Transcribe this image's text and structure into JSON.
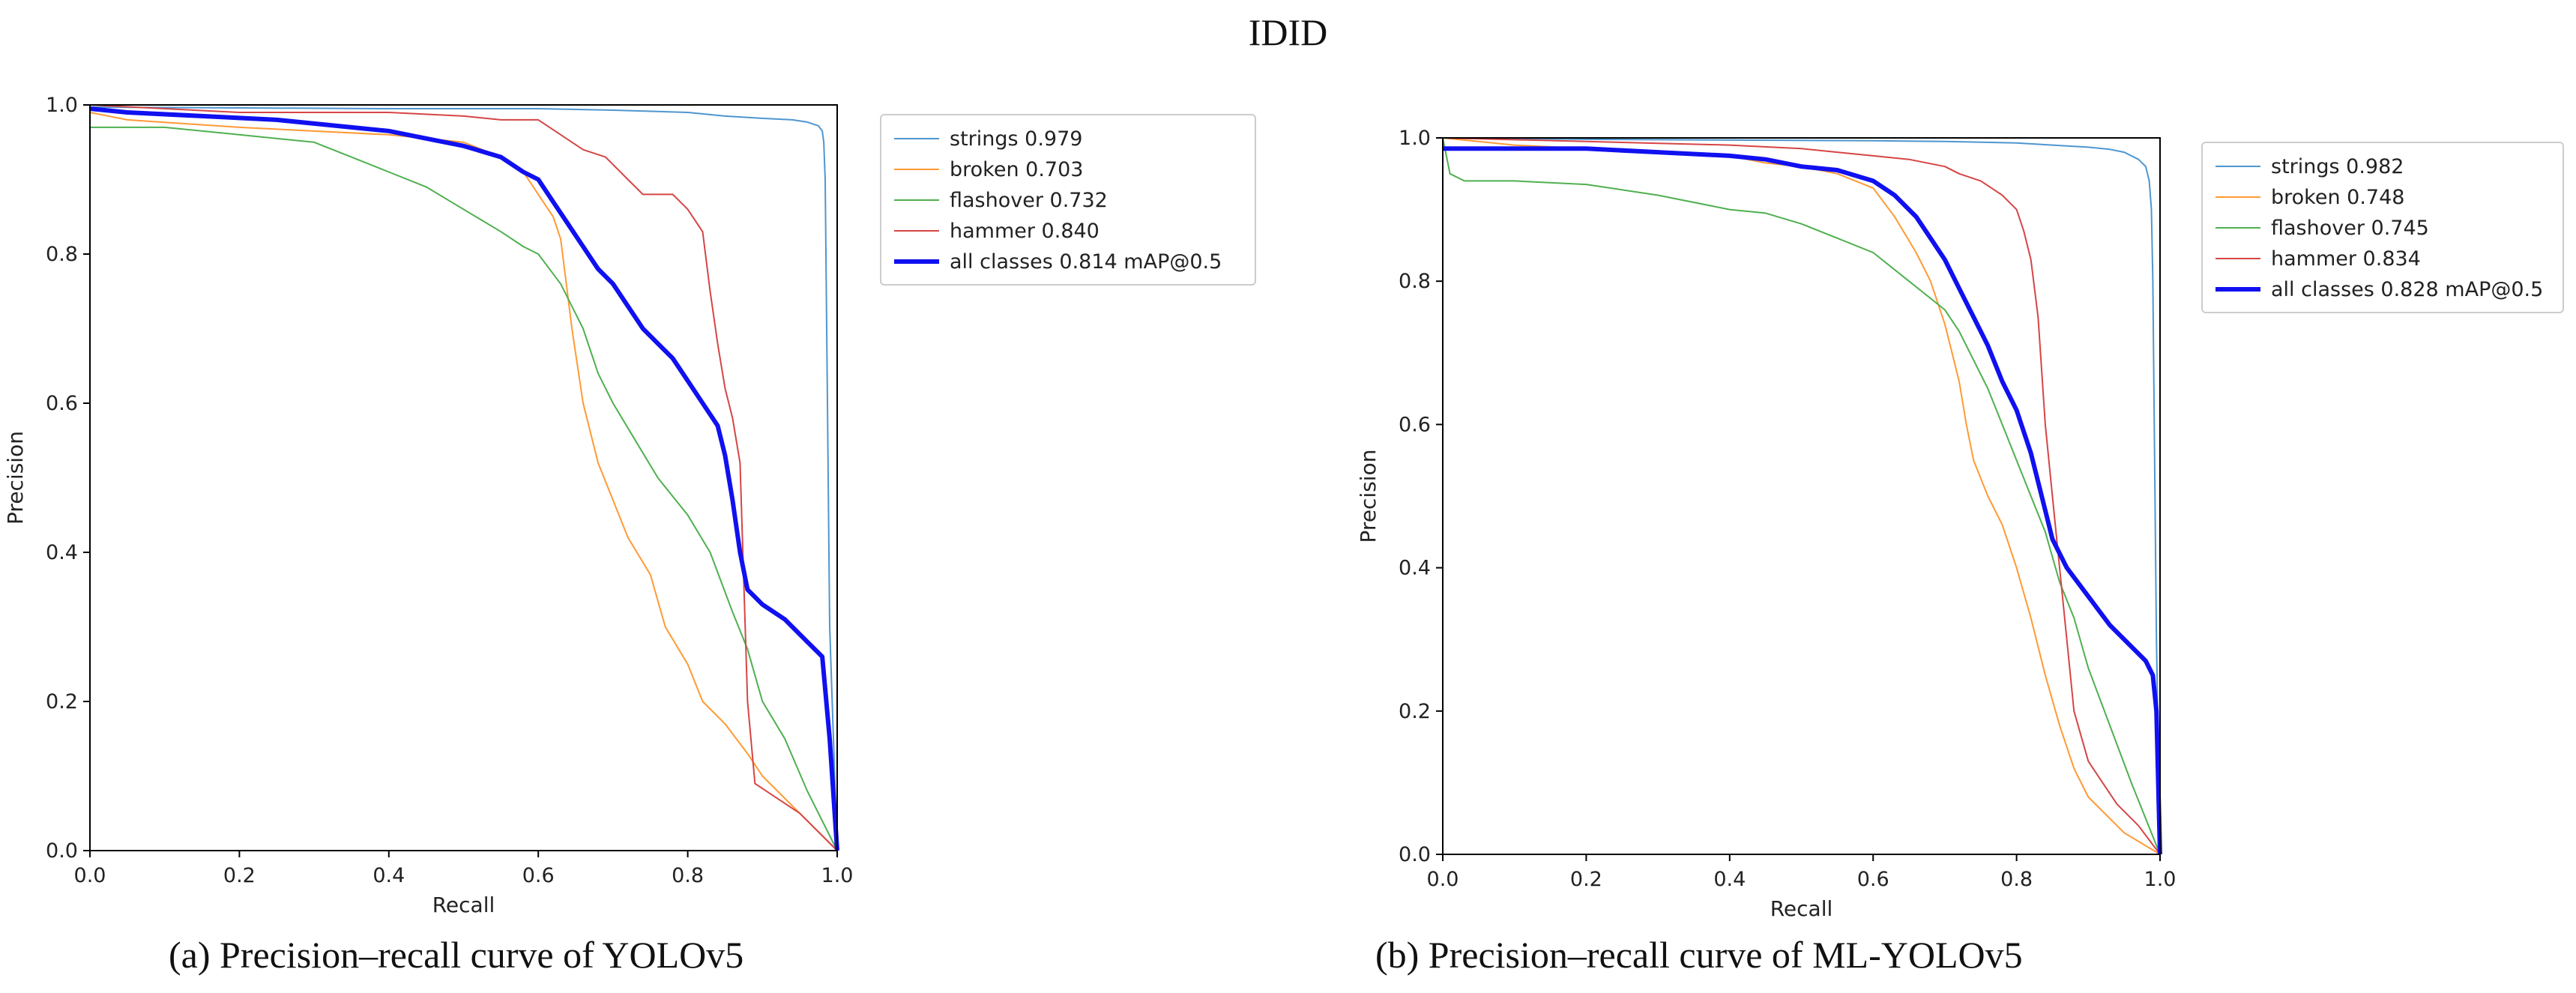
{
  "page": {
    "title": "IDID",
    "captions": [
      "(a) Precision–recall curve of YOLOv5",
      "(b) Precision–recall curve of ML-YOLOv5"
    ]
  },
  "chart_data": [
    {
      "type": "line",
      "title": "",
      "xlabel": "Recall",
      "ylabel": "Precision",
      "xlim": [
        0,
        1
      ],
      "ylim": [
        0,
        1
      ],
      "xticks": [
        "0.0",
        "0.2",
        "0.4",
        "0.6",
        "0.8",
        "1.0"
      ],
      "yticks": [
        "0.0",
        "0.2",
        "0.4",
        "0.6",
        "0.8",
        "1.0"
      ],
      "grid": false,
      "legend_position": "outside-right-top",
      "series": [
        {
          "name": "strings",
          "label": "strings 0.979",
          "color": "#4f96cf",
          "width": 2,
          "x": [
            0,
            0.2,
            0.4,
            0.6,
            0.7,
            0.8,
            0.85,
            0.9,
            0.94,
            0.96,
            0.975,
            0.98,
            0.982,
            0.984,
            0.985,
            0.987,
            0.99,
            1.0
          ],
          "y": [
            0.997,
            0.996,
            0.995,
            0.995,
            0.993,
            0.99,
            0.985,
            0.982,
            0.98,
            0.977,
            0.972,
            0.965,
            0.95,
            0.9,
            0.8,
            0.6,
            0.3,
            0
          ]
        },
        {
          "name": "broken",
          "label": "broken 0.703",
          "color": "#ff9a35",
          "width": 2,
          "x": [
            0,
            0.05,
            0.2,
            0.4,
            0.5,
            0.55,
            0.58,
            0.6,
            0.62,
            0.63,
            0.635,
            0.645,
            0.66,
            0.68,
            0.7,
            0.72,
            0.75,
            0.77,
            0.8,
            0.82,
            0.85,
            0.88,
            0.9,
            0.95,
            1.0
          ],
          "y": [
            0.99,
            0.98,
            0.97,
            0.96,
            0.95,
            0.93,
            0.91,
            0.88,
            0.85,
            0.82,
            0.78,
            0.7,
            0.6,
            0.52,
            0.47,
            0.42,
            0.37,
            0.3,
            0.25,
            0.2,
            0.17,
            0.13,
            0.1,
            0.05,
            0
          ]
        },
        {
          "name": "flashover",
          "label": "flashover 0.732",
          "color": "#4fb04f",
          "width": 2,
          "x": [
            0,
            0.01,
            0.1,
            0.2,
            0.3,
            0.35,
            0.4,
            0.45,
            0.5,
            0.55,
            0.58,
            0.6,
            0.63,
            0.66,
            0.68,
            0.7,
            0.73,
            0.76,
            0.8,
            0.83,
            0.86,
            0.88,
            0.9,
            0.93,
            0.96,
            1.0
          ],
          "y": [
            0.97,
            0.97,
            0.97,
            0.96,
            0.95,
            0.93,
            0.91,
            0.89,
            0.86,
            0.83,
            0.81,
            0.8,
            0.76,
            0.7,
            0.64,
            0.6,
            0.55,
            0.5,
            0.45,
            0.4,
            0.32,
            0.27,
            0.2,
            0.15,
            0.08,
            0
          ]
        },
        {
          "name": "hammer",
          "label": "hammer 0.840",
          "color": "#d64545",
          "width": 2,
          "x": [
            0,
            0.2,
            0.4,
            0.5,
            0.55,
            0.6,
            0.63,
            0.66,
            0.69,
            0.72,
            0.74,
            0.76,
            0.78,
            0.8,
            0.82,
            0.83,
            0.84,
            0.85,
            0.86,
            0.87,
            0.88,
            0.89,
            0.95,
            1.0
          ],
          "y": [
            1.0,
            0.99,
            0.99,
            0.985,
            0.98,
            0.98,
            0.96,
            0.94,
            0.93,
            0.9,
            0.88,
            0.88,
            0.88,
            0.86,
            0.83,
            0.75,
            0.68,
            0.62,
            0.58,
            0.52,
            0.2,
            0.09,
            0.05,
            0
          ]
        },
        {
          "name": "all classes",
          "label": "all classes 0.814 mAP@0.5",
          "color": "#1010f0",
          "width": 6,
          "x": [
            0,
            0.05,
            0.15,
            0.25,
            0.3,
            0.35,
            0.4,
            0.45,
            0.5,
            0.55,
            0.58,
            0.6,
            0.62,
            0.64,
            0.66,
            0.68,
            0.7,
            0.72,
            0.74,
            0.76,
            0.78,
            0.8,
            0.82,
            0.84,
            0.85,
            0.86,
            0.87,
            0.88,
            0.9,
            0.93,
            0.96,
            0.98,
            0.99,
            1.0
          ],
          "y": [
            0.995,
            0.99,
            0.985,
            0.98,
            0.975,
            0.97,
            0.965,
            0.955,
            0.945,
            0.93,
            0.91,
            0.9,
            0.87,
            0.84,
            0.81,
            0.78,
            0.76,
            0.73,
            0.7,
            0.68,
            0.66,
            0.63,
            0.6,
            0.57,
            0.53,
            0.47,
            0.4,
            0.35,
            0.33,
            0.31,
            0.28,
            0.26,
            0.15,
            0
          ]
        }
      ]
    },
    {
      "type": "line",
      "title": "",
      "xlabel": "Recall",
      "ylabel": "Precision",
      "xlim": [
        0,
        1
      ],
      "ylim": [
        0,
        1
      ],
      "xticks": [
        "0.0",
        "0.2",
        "0.4",
        "0.6",
        "0.8",
        "1.0"
      ],
      "yticks": [
        "0.0",
        "0.2",
        "0.4",
        "0.6",
        "0.8",
        "1.0"
      ],
      "grid": false,
      "legend_position": "outside-right-top",
      "series": [
        {
          "name": "strings",
          "label": "strings 0.982",
          "color": "#4f96cf",
          "width": 2,
          "x": [
            0,
            0.2,
            0.4,
            0.6,
            0.7,
            0.8,
            0.85,
            0.9,
            0.93,
            0.95,
            0.97,
            0.98,
            0.985,
            0.988,
            0.99,
            0.992,
            0.995,
            1.0
          ],
          "y": [
            1.0,
            0.998,
            0.997,
            0.996,
            0.995,
            0.993,
            0.99,
            0.987,
            0.984,
            0.98,
            0.97,
            0.96,
            0.94,
            0.9,
            0.8,
            0.6,
            0.3,
            0
          ]
        },
        {
          "name": "broken",
          "label": "broken 0.748",
          "color": "#ff9a35",
          "width": 2,
          "x": [
            0,
            0.1,
            0.2,
            0.3,
            0.4,
            0.45,
            0.5,
            0.55,
            0.6,
            0.63,
            0.66,
            0.68,
            0.7,
            0.71,
            0.72,
            0.73,
            0.74,
            0.76,
            0.78,
            0.8,
            0.82,
            0.84,
            0.86,
            0.88,
            0.9,
            0.95,
            1.0
          ],
          "y": [
            1.0,
            0.99,
            0.985,
            0.98,
            0.975,
            0.965,
            0.96,
            0.95,
            0.93,
            0.89,
            0.84,
            0.8,
            0.74,
            0.7,
            0.66,
            0.6,
            0.55,
            0.5,
            0.46,
            0.4,
            0.33,
            0.25,
            0.18,
            0.12,
            0.08,
            0.03,
            0
          ]
        },
        {
          "name": "flashover",
          "label": "flashover 0.745",
          "color": "#4fb04f",
          "width": 2,
          "x": [
            0,
            0.01,
            0.03,
            0.1,
            0.2,
            0.3,
            0.4,
            0.45,
            0.5,
            0.55,
            0.6,
            0.65,
            0.7,
            0.72,
            0.74,
            0.76,
            0.78,
            0.8,
            0.82,
            0.84,
            0.86,
            0.88,
            0.9,
            0.93,
            0.96,
            1.0
          ],
          "y": [
            1.0,
            0.95,
            0.94,
            0.94,
            0.935,
            0.92,
            0.9,
            0.895,
            0.88,
            0.86,
            0.84,
            0.8,
            0.76,
            0.73,
            0.69,
            0.65,
            0.6,
            0.55,
            0.5,
            0.45,
            0.38,
            0.33,
            0.26,
            0.18,
            0.1,
            0
          ]
        },
        {
          "name": "hammer",
          "label": "hammer 0.834",
          "color": "#d64545",
          "width": 2,
          "x": [
            0,
            0.2,
            0.4,
            0.5,
            0.55,
            0.6,
            0.65,
            0.7,
            0.72,
            0.75,
            0.78,
            0.8,
            0.81,
            0.82,
            0.83,
            0.84,
            0.85,
            0.86,
            0.87,
            0.88,
            0.9,
            0.92,
            0.94,
            0.97,
            1.0
          ],
          "y": [
            1.0,
            0.995,
            0.99,
            0.985,
            0.98,
            0.975,
            0.97,
            0.96,
            0.95,
            0.94,
            0.92,
            0.9,
            0.87,
            0.83,
            0.75,
            0.6,
            0.5,
            0.4,
            0.3,
            0.2,
            0.13,
            0.1,
            0.07,
            0.04,
            0
          ]
        },
        {
          "name": "all classes",
          "label": "all classes 0.828 mAP@0.5",
          "color": "#1010f0",
          "width": 6,
          "x": [
            0,
            0.03,
            0.1,
            0.2,
            0.3,
            0.4,
            0.45,
            0.5,
            0.55,
            0.6,
            0.63,
            0.66,
            0.68,
            0.7,
            0.72,
            0.74,
            0.76,
            0.78,
            0.8,
            0.82,
            0.83,
            0.84,
            0.85,
            0.87,
            0.9,
            0.93,
            0.96,
            0.98,
            0.99,
            0.995,
            1.0
          ],
          "y": [
            0.985,
            0.985,
            0.985,
            0.985,
            0.98,
            0.975,
            0.97,
            0.96,
            0.955,
            0.94,
            0.92,
            0.89,
            0.86,
            0.83,
            0.79,
            0.75,
            0.71,
            0.66,
            0.62,
            0.56,
            0.52,
            0.48,
            0.44,
            0.4,
            0.36,
            0.32,
            0.29,
            0.27,
            0.25,
            0.2,
            0
          ]
        }
      ]
    }
  ]
}
